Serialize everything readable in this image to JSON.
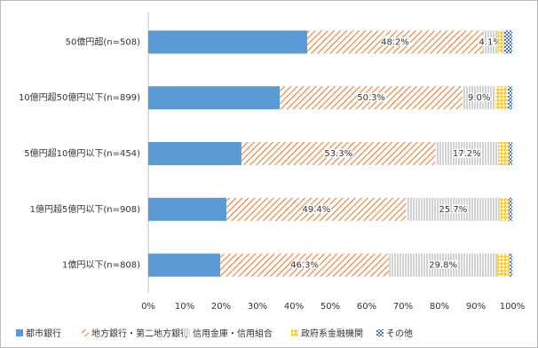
{
  "chart_data": {
    "type": "stacked-bar-horizontal",
    "categories": [
      "50億円超(n=508)",
      "10億円超50億円以下(n=899)",
      "5億円超10億円以下(n=454)",
      "1億円超5億円以下(n=908)",
      "1億円以下(n=808)"
    ],
    "series": [
      {
        "name": "都市銀行",
        "color": "#5b9bd5",
        "pattern": "solid",
        "values": [
          43.7,
          36.1,
          25.6,
          21.5,
          19.8
        ]
      },
      {
        "name": "地方銀行・第二地方銀行",
        "color": "#ed7d31",
        "pattern": "diagonal",
        "values": [
          48.2,
          50.3,
          53.3,
          49.4,
          46.3
        ],
        "value_labels": [
          "48.2%",
          "50.3%",
          "53.3%",
          "49.4%",
          "46.3%"
        ]
      },
      {
        "name": "信用金庫・信用組合",
        "color": "#a5a5a5",
        "pattern": "vertical",
        "values": [
          4.1,
          9.0,
          17.2,
          25.7,
          29.8
        ],
        "value_labels": [
          "4.1%",
          "9.0%",
          "17.2%",
          "25.7%",
          "29.8%"
        ]
      },
      {
        "name": "政府系金融機関",
        "color": "#ffc000",
        "pattern": "grid",
        "values": [
          1.7,
          3.4,
          2.9,
          2.4,
          3.4
        ]
      },
      {
        "name": "その他",
        "color": "#4472c4",
        "pattern": "checker",
        "values": [
          2.3,
          1.2,
          1.0,
          1.0,
          0.7
        ]
      }
    ],
    "xlim": [
      0,
      100
    ],
    "xticks": [
      {
        "value": 0,
        "label": "0%"
      },
      {
        "value": 10,
        "label": "10%"
      },
      {
        "value": 20,
        "label": "20%"
      },
      {
        "value": 30,
        "label": "30%"
      },
      {
        "value": 40,
        "label": "40%"
      },
      {
        "value": 50,
        "label": "50%"
      },
      {
        "value": 60,
        "label": "60%"
      },
      {
        "value": 70,
        "label": "70%"
      },
      {
        "value": 80,
        "label": "80%"
      },
      {
        "value": 90,
        "label": "90%"
      },
      {
        "value": 100,
        "label": "100%"
      }
    ],
    "grid": false,
    "legend": "bottom"
  }
}
